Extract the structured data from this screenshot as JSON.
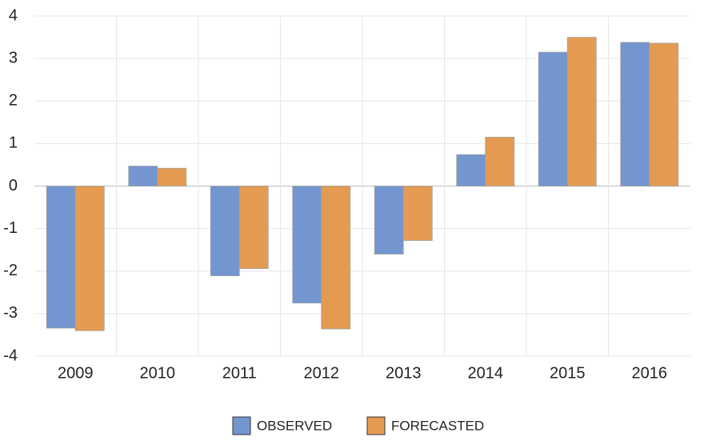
{
  "chart_data": {
    "type": "bar",
    "categories": [
      "2009",
      "2010",
      "2011",
      "2012",
      "2013",
      "2014",
      "2015",
      "2016"
    ],
    "series": [
      {
        "name": "OBSERVED",
        "color": "#7396d0",
        "values": [
          -3.34,
          0.47,
          -2.11,
          -2.75,
          -1.6,
          0.74,
          3.15,
          3.38
        ]
      },
      {
        "name": "FORECASTED",
        "color": "#e49b51",
        "values": [
          -3.4,
          0.42,
          -1.94,
          -3.36,
          -1.28,
          1.15,
          3.5,
          3.36
        ]
      }
    ],
    "ylim": [
      -4,
      4
    ],
    "yticks": [
      -4,
      -3,
      -2,
      -1,
      0,
      1,
      2,
      3,
      4
    ],
    "grid": true,
    "legend": "bottom"
  }
}
